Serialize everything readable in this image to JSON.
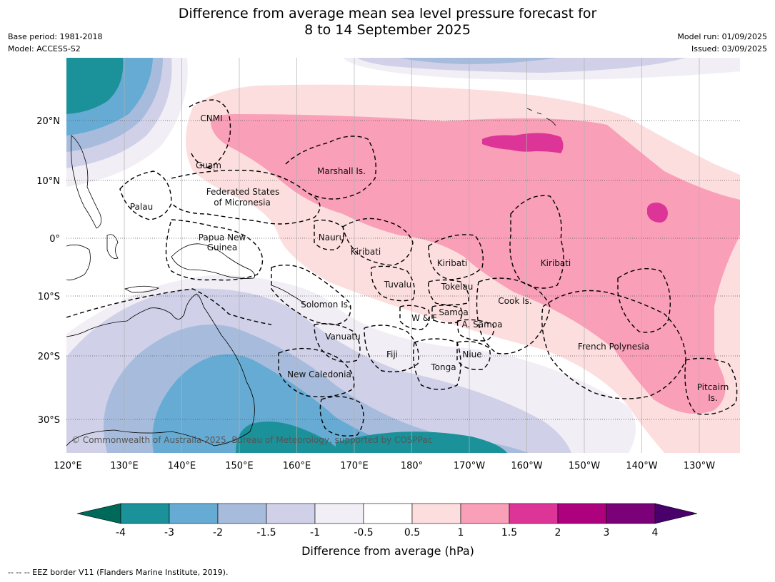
{
  "title_line1": "Difference from average mean sea level pressure forecast for",
  "title_line2": "8 to 14 September 2025",
  "meta_left": [
    "Base period: 1981-2018",
    "Model: ACCESS-S2"
  ],
  "meta_right": [
    "Model run: 01/09/2025",
    "Issued: 03/09/2025"
  ],
  "axes": {
    "lat_labels": [
      "20°N",
      "10°N",
      "0°",
      "10°S",
      "20°S",
      "30°S"
    ],
    "lon_labels": [
      "120°E",
      "130°E",
      "140°E",
      "150°E",
      "160°E",
      "170°E",
      "180°",
      "170°W",
      "160°W",
      "150°W",
      "140°W",
      "130°W"
    ]
  },
  "regions": [
    "CNMI",
    "Guam",
    "Marshall Is.",
    "Federated States",
    "of Micronesia",
    "Palau",
    "Papua New",
    "Guinea",
    "Nauru",
    "Kiribati",
    "Kiribati",
    "Kiribati",
    "Tuvalu",
    "Tokelau",
    "Solomon Is.",
    "Cook Is.",
    "Samoa",
    "W & F",
    "A. Samoa",
    "Vanuatu",
    "Fiji",
    "Niue",
    "French Polynesia",
    "Tonga",
    "New Caledonia",
    "Pitcairn",
    "Is."
  ],
  "copyright": "© Commonwealth of Australia 2025, Bureau of Meteorology, supported by COSPPac",
  "colorbar": {
    "ticks": [
      "-4",
      "-3",
      "-2",
      "-1.5",
      "-1",
      "-0.5",
      "0.5",
      "1",
      "1.5",
      "2",
      "3",
      "4"
    ],
    "colors": [
      "#1b9199",
      "#66abd3",
      "#a7bcdc",
      "#d0d1e8",
      "#f2eef5",
      "#ffffff",
      "#fddede",
      "#f99fb8",
      "#dd3597",
      "#ad017e",
      "#7a0177"
    ],
    "extend_low": "#006a5a",
    "extend_high": "#49006a",
    "title": "Difference from average (hPa)"
  },
  "footer": "--  --  -- EEZ border V11 (Flanders Marine Institute, 2019)."
}
